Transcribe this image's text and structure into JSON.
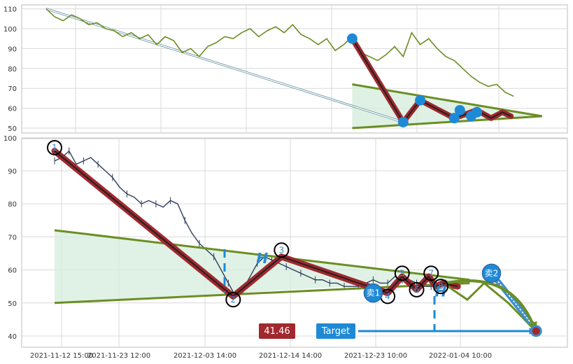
{
  "chart_data": [
    {
      "panel": "top",
      "type": "line",
      "ylim": [
        46,
        112
      ],
      "yticks": [
        50,
        60,
        70,
        80,
        90,
        100,
        110
      ],
      "grid": true,
      "colors": {
        "price": "#6b8e23",
        "zigzag": "#a0282e",
        "markers": "#1e8ad6",
        "triangle": "#6b8e23"
      },
      "price_x": [
        0,
        3,
        6,
        9,
        12,
        15,
        18,
        21,
        24,
        27,
        30,
        33,
        36,
        39,
        42,
        45,
        48,
        51,
        54,
        57,
        60,
        63,
        66,
        69,
        72,
        75,
        78,
        81,
        84,
        87,
        90,
        93,
        96,
        99,
        102,
        105,
        108,
        111,
        114,
        117,
        120,
        123,
        126,
        129,
        132,
        135,
        138,
        141,
        144,
        147,
        150,
        153,
        156,
        159,
        162,
        165
      ],
      "price_y": [
        110,
        106,
        104,
        107,
        105,
        102,
        103,
        100,
        99,
        96,
        98,
        95,
        97,
        92,
        96,
        94,
        88,
        90,
        86,
        91,
        93,
        96,
        95,
        98,
        100,
        96,
        99,
        101,
        98,
        102,
        97,
        95,
        92,
        95,
        89,
        92,
        96,
        88,
        86,
        84,
        87,
        91,
        86,
        98,
        92,
        95,
        90,
        86,
        84,
        80,
        76,
        73,
        71,
        72,
        68,
        66
      ],
      "zigzag_x": [
        108,
        126,
        132,
        144,
        152,
        157,
        161,
        164
      ],
      "zigzag_y": [
        95,
        53,
        64,
        55,
        59,
        55,
        58,
        56
      ],
      "markers_x": [
        108,
        126,
        132,
        144,
        146,
        150,
        152
      ],
      "markers_y": [
        95,
        53,
        64,
        55,
        59,
        56,
        58
      ],
      "triangle_upper": {
        "x": [
          108,
          175
        ],
        "y": [
          72,
          56
        ]
      },
      "triangle_lower": {
        "x": [
          108,
          175
        ],
        "y": [
          50,
          56
        ]
      },
      "arrow_line": {
        "x": [
          0,
          126
        ],
        "y": [
          110,
          53
        ]
      }
    },
    {
      "panel": "bottom",
      "type": "line",
      "ylim": [
        36,
        100
      ],
      "yticks": [
        40,
        50,
        60,
        70,
        80,
        90,
        100
      ],
      "xticks": [
        "2021-11-12 15:00",
        "2021-11-23 12:00",
        "2021-12-03 14:00",
        "2021-12-14 14:00",
        "2021-12-23 10:00",
        "2022-01-04 10:00"
      ],
      "grid": true,
      "price_x": [
        0,
        3,
        6,
        9,
        12,
        15,
        18,
        21,
        24,
        27,
        30,
        33,
        36,
        39,
        42,
        45,
        48,
        51,
        54,
        57,
        60,
        63,
        66,
        69,
        72,
        75,
        78,
        81,
        84,
        87,
        90,
        93,
        96,
        99,
        102,
        105,
        108,
        111,
        114,
        117,
        120,
        123,
        126,
        129,
        132,
        135,
        138,
        141,
        144,
        147,
        150,
        153,
        156,
        159,
        162,
        165
      ],
      "price_y": [
        93,
        94,
        96,
        92,
        93,
        94,
        92,
        90,
        88,
        85,
        83,
        82,
        80,
        81,
        80,
        79,
        81,
        80,
        75,
        71,
        68,
        66,
        64,
        60,
        56,
        52,
        54,
        58,
        62,
        64,
        63,
        62,
        61,
        60,
        59,
        58,
        57,
        57,
        56,
        56,
        55,
        55,
        55,
        56,
        57,
        56,
        56,
        58,
        57,
        57,
        56,
        55,
        55,
        55,
        56,
        55
      ],
      "zigzag_x": [
        0,
        74,
        94,
        138,
        144,
        150,
        155,
        158,
        161,
        167
      ],
      "zigzag_y": [
        96,
        52,
        64,
        53,
        58,
        54,
        58,
        55,
        56,
        55
      ],
      "points": [
        {
          "label": "1",
          "x": 0,
          "y": 97
        },
        {
          "label": "2",
          "x": 74,
          "y": 51
        },
        {
          "label": "3",
          "x": 94,
          "y": 66
        },
        {
          "label": "4",
          "x": 138,
          "y": 52
        },
        {
          "label": "5",
          "x": 144,
          "y": 59
        },
        {
          "label": "6",
          "x": 150,
          "y": 54
        },
        {
          "label": "7",
          "x": 156,
          "y": 59
        },
        {
          "label": "8",
          "x": 160,
          "y": 55
        }
      ],
      "sell_points": [
        {
          "label": "卖1",
          "x": 132,
          "y": 53
        },
        {
          "label": "卖2",
          "x": 181,
          "y": 59
        }
      ],
      "h_labels": [
        {
          "text": "H",
          "x": 86,
          "y": 62
        },
        {
          "text": "H",
          "x": 160,
          "y": 52
        }
      ],
      "triangle_upper": {
        "x": [
          0,
          172
        ],
        "y": [
          72,
          57
        ]
      },
      "triangle_lower": {
        "x": [
          0,
          172
        ],
        "y": [
          50,
          56
        ]
      },
      "projection": {
        "x": [
          163,
          171,
          178,
          188,
          200
        ],
        "y": [
          55,
          51,
          56,
          50,
          41
        ]
      },
      "target_price": "41.46",
      "target_label": "Target"
    }
  ]
}
